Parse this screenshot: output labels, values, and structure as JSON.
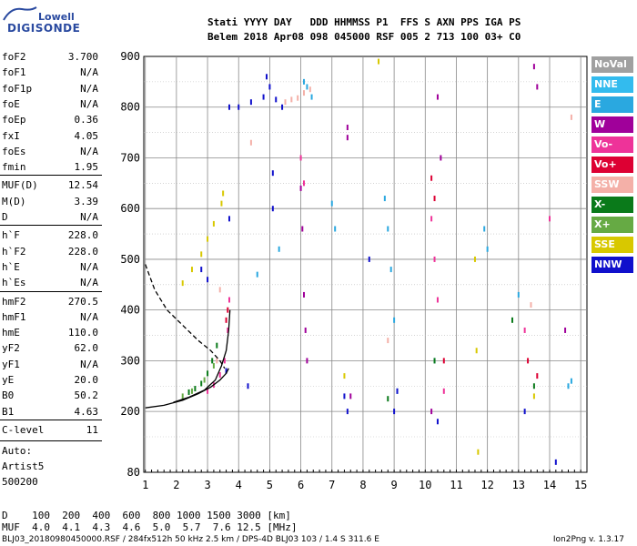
{
  "logo": {
    "line1": "Lowell",
    "line2": "DIGISONDE"
  },
  "header": {
    "row1": "Stati YYYY DAY   DDD HHMMSS P1  FFS S AXN PPS IGA PS",
    "row2": "Belem 2018 Apr08 098 045000 RSF 005 2 713 100 03+ C0"
  },
  "params": [
    {
      "k": "foF2",
      "v": "3.700"
    },
    {
      "k": "foF1",
      "v": "N/A"
    },
    {
      "k": "foF1p",
      "v": "N/A"
    },
    {
      "k": "foE",
      "v": "N/A"
    },
    {
      "k": "foEp",
      "v": "0.36"
    },
    {
      "k": "fxI",
      "v": "4.05"
    },
    {
      "k": "foEs",
      "v": "N/A"
    },
    {
      "k": "fmin",
      "v": "1.95"
    },
    {
      "k": "MUF(D)",
      "v": "12.54"
    },
    {
      "k": "M(D)",
      "v": "3.39"
    },
    {
      "k": "D",
      "v": "N/A"
    },
    {
      "k": "h`F",
      "v": "228.0"
    },
    {
      "k": "h`F2",
      "v": "228.0"
    },
    {
      "k": "h`E",
      "v": "N/A"
    },
    {
      "k": "h`Es",
      "v": "N/A"
    },
    {
      "k": "hmF2",
      "v": "270.5"
    },
    {
      "k": "hmF1",
      "v": "N/A"
    },
    {
      "k": "hmE",
      "v": "110.0"
    },
    {
      "k": "yF2",
      "v": "62.0"
    },
    {
      "k": "yF1",
      "v": "N/A"
    },
    {
      "k": "yE",
      "v": "20.0"
    },
    {
      "k": "B0",
      "v": "50.2"
    },
    {
      "k": "B1",
      "v": "4.63"
    },
    {
      "k": "C-level",
      "v": "11"
    }
  ],
  "auto": {
    "line1": "Auto:",
    "line2": "Artist5",
    "line3": "500200"
  },
  "legend": [
    {
      "label": "NoVal",
      "color": "#a0a0a0"
    },
    {
      "label": "NNE",
      "color": "#33bbee"
    },
    {
      "label": "E",
      "color": "#2aa8e0"
    },
    {
      "label": "W",
      "color": "#a0009a"
    },
    {
      "label": "Vo-",
      "color": "#ee3399"
    },
    {
      "label": "Vo+",
      "color": "#dd0033"
    },
    {
      "label": "SSW",
      "color": "#f4b0a8"
    },
    {
      "label": "X-",
      "color": "#0a7a1a"
    },
    {
      "label": "X+",
      "color": "#66aa44"
    },
    {
      "label": "SSE",
      "color": "#d8c800"
    },
    {
      "label": "NNW",
      "color": "#1010cc"
    }
  ],
  "bottom": {
    "d_row": "D    100  200  400  600  800 1000 1500 3000 [km]",
    "muf_row": "MUF  4.0  4.1  4.3  4.6  5.0  5.7  7.6 12.5 [MHz]"
  },
  "footer": {
    "left": "BLJ03_20180980450000.RSF / 284fx512h 50 kHz 2.5 km / DPS-4D BLJ03 103 / 1.4 S 311.6 E",
    "right": "Ion2Png v. 1.3.17"
  },
  "chart_data": {
    "type": "scatter",
    "title": "",
    "xlabel": "",
    "ylabel": "",
    "xlim": [
      0.95,
      15.2
    ],
    "ylim": [
      80,
      900
    ],
    "x_ticks": [
      "1",
      "2",
      "3",
      "4",
      "5",
      "6",
      "7",
      "8",
      "9",
      "10",
      "11",
      "12",
      "13",
      "14",
      "15"
    ],
    "y_ticks": [
      "80",
      "200",
      "300",
      "400",
      "500",
      "600",
      "700",
      "800",
      "900"
    ],
    "grid": true,
    "series": [
      {
        "name": "E",
        "color": "#2aa8e0",
        "points": [
          [
            6.1,
            850
          ],
          [
            6.2,
            840
          ],
          [
            6.35,
            820
          ],
          [
            8.7,
            620
          ],
          [
            8.8,
            560
          ],
          [
            8.9,
            480
          ],
          [
            9.0,
            380
          ],
          [
            9.1,
            240
          ],
          [
            7.0,
            610
          ],
          [
            7.1,
            560
          ],
          [
            11.9,
            560
          ],
          [
            12.0,
            520
          ],
          [
            13.0,
            430
          ],
          [
            14.7,
            260
          ],
          [
            14.6,
            250
          ],
          [
            5.3,
            520
          ],
          [
            4.6,
            470
          ],
          [
            10.3,
            300
          ]
        ]
      },
      {
        "name": "W",
        "color": "#a0009a",
        "points": [
          [
            6.0,
            640
          ],
          [
            6.05,
            560
          ],
          [
            6.1,
            430
          ],
          [
            6.15,
            360
          ],
          [
            6.2,
            300
          ],
          [
            7.5,
            760
          ],
          [
            7.5,
            740
          ],
          [
            7.6,
            230
          ],
          [
            10.4,
            820
          ],
          [
            10.5,
            700
          ],
          [
            13.5,
            880
          ],
          [
            13.6,
            840
          ],
          [
            14.5,
            360
          ],
          [
            10.2,
            200
          ]
        ]
      },
      {
        "name": "Vo-",
        "color": "#ee3399",
        "points": [
          [
            3.0,
            240
          ],
          [
            3.2,
            252
          ],
          [
            3.4,
            272
          ],
          [
            3.55,
            300
          ],
          [
            3.65,
            360
          ],
          [
            3.7,
            420
          ],
          [
            10.2,
            580
          ],
          [
            10.3,
            500
          ],
          [
            10.4,
            420
          ],
          [
            6.0,
            700
          ],
          [
            6.1,
            650
          ],
          [
            13.2,
            360
          ],
          [
            14.0,
            580
          ],
          [
            10.6,
            240
          ]
        ]
      },
      {
        "name": "Vo+",
        "color": "#dd0033",
        "points": [
          [
            3.6,
            380
          ],
          [
            3.65,
            400
          ],
          [
            10.2,
            660
          ],
          [
            10.3,
            620
          ],
          [
            10.6,
            300
          ],
          [
            13.3,
            300
          ],
          [
            13.6,
            270
          ]
        ]
      },
      {
        "name": "SSW",
        "color": "#f4b0a8",
        "points": [
          [
            5.5,
            810
          ],
          [
            5.7,
            815
          ],
          [
            5.9,
            818
          ],
          [
            6.1,
            828
          ],
          [
            6.3,
            835
          ],
          [
            3.3,
            300
          ],
          [
            3.4,
            440
          ],
          [
            8.8,
            340
          ],
          [
            13.4,
            410
          ],
          [
            4.4,
            730
          ],
          [
            14.7,
            780
          ]
        ]
      },
      {
        "name": "X-",
        "color": "#0a7a1a",
        "points": [
          [
            2.4,
            238
          ],
          [
            2.6,
            245
          ],
          [
            2.8,
            255
          ],
          [
            3.0,
            275
          ],
          [
            3.15,
            300
          ],
          [
            3.3,
            330
          ],
          [
            10.3,
            300
          ],
          [
            8.8,
            225
          ],
          [
            12.8,
            380
          ],
          [
            13.5,
            250
          ]
        ]
      },
      {
        "name": "X+",
        "color": "#66aa44",
        "points": [
          [
            2.2,
            230
          ],
          [
            2.5,
            240
          ],
          [
            2.9,
            262
          ],
          [
            3.2,
            290
          ]
        ]
      },
      {
        "name": "SSE",
        "color": "#d8c800",
        "points": [
          [
            2.2,
            453
          ],
          [
            2.5,
            480
          ],
          [
            2.8,
            510
          ],
          [
            3.0,
            540
          ],
          [
            3.2,
            570
          ],
          [
            3.45,
            610
          ],
          [
            3.5,
            630
          ],
          [
            11.6,
            500
          ],
          [
            11.65,
            320
          ],
          [
            11.7,
            120
          ],
          [
            7.4,
            270
          ],
          [
            8.5,
            890
          ],
          [
            13.5,
            230
          ]
        ]
      },
      {
        "name": "NNW",
        "color": "#1010cc",
        "points": [
          [
            3.7,
            800
          ],
          [
            4.0,
            800
          ],
          [
            4.4,
            810
          ],
          [
            4.8,
            820
          ],
          [
            5.2,
            815
          ],
          [
            4.9,
            860
          ],
          [
            5.0,
            840
          ],
          [
            3.6,
            280
          ],
          [
            3.7,
            580
          ],
          [
            2.8,
            480
          ],
          [
            3.0,
            460
          ],
          [
            9.0,
            200
          ],
          [
            9.1,
            240
          ],
          [
            8.2,
            500
          ],
          [
            7.4,
            230
          ],
          [
            7.5,
            200
          ],
          [
            4.3,
            250
          ],
          [
            5.4,
            800
          ],
          [
            5.1,
            670
          ],
          [
            5.1,
            600
          ],
          [
            10.4,
            180
          ],
          [
            13.2,
            200
          ],
          [
            14.2,
            100
          ]
        ]
      }
    ],
    "curves": [
      {
        "name": "O-trace profile",
        "style": "solid",
        "color": "#000000",
        "points": [
          [
            1.0,
            207
          ],
          [
            1.6,
            212
          ],
          [
            2.2,
            222
          ],
          [
            2.7,
            235
          ],
          [
            3.1,
            248
          ],
          [
            3.4,
            262
          ],
          [
            3.6,
            275
          ],
          [
            3.68,
            285
          ]
        ]
      },
      {
        "name": "O-trace fit",
        "style": "solid",
        "color": "#000000",
        "points": [
          [
            1.9,
            218
          ],
          [
            2.4,
            228
          ],
          [
            2.9,
            242
          ],
          [
            3.25,
            262
          ],
          [
            3.45,
            290
          ],
          [
            3.6,
            320
          ],
          [
            3.68,
            360
          ],
          [
            3.72,
            400
          ]
        ]
      },
      {
        "name": "profile",
        "style": "dashed",
        "color": "#000000",
        "points": [
          [
            1.0,
            490
          ],
          [
            1.3,
            440
          ],
          [
            1.7,
            400
          ],
          [
            2.2,
            370
          ],
          [
            2.7,
            340
          ],
          [
            3.1,
            320
          ],
          [
            3.4,
            300
          ],
          [
            3.55,
            285
          ]
        ]
      }
    ]
  }
}
